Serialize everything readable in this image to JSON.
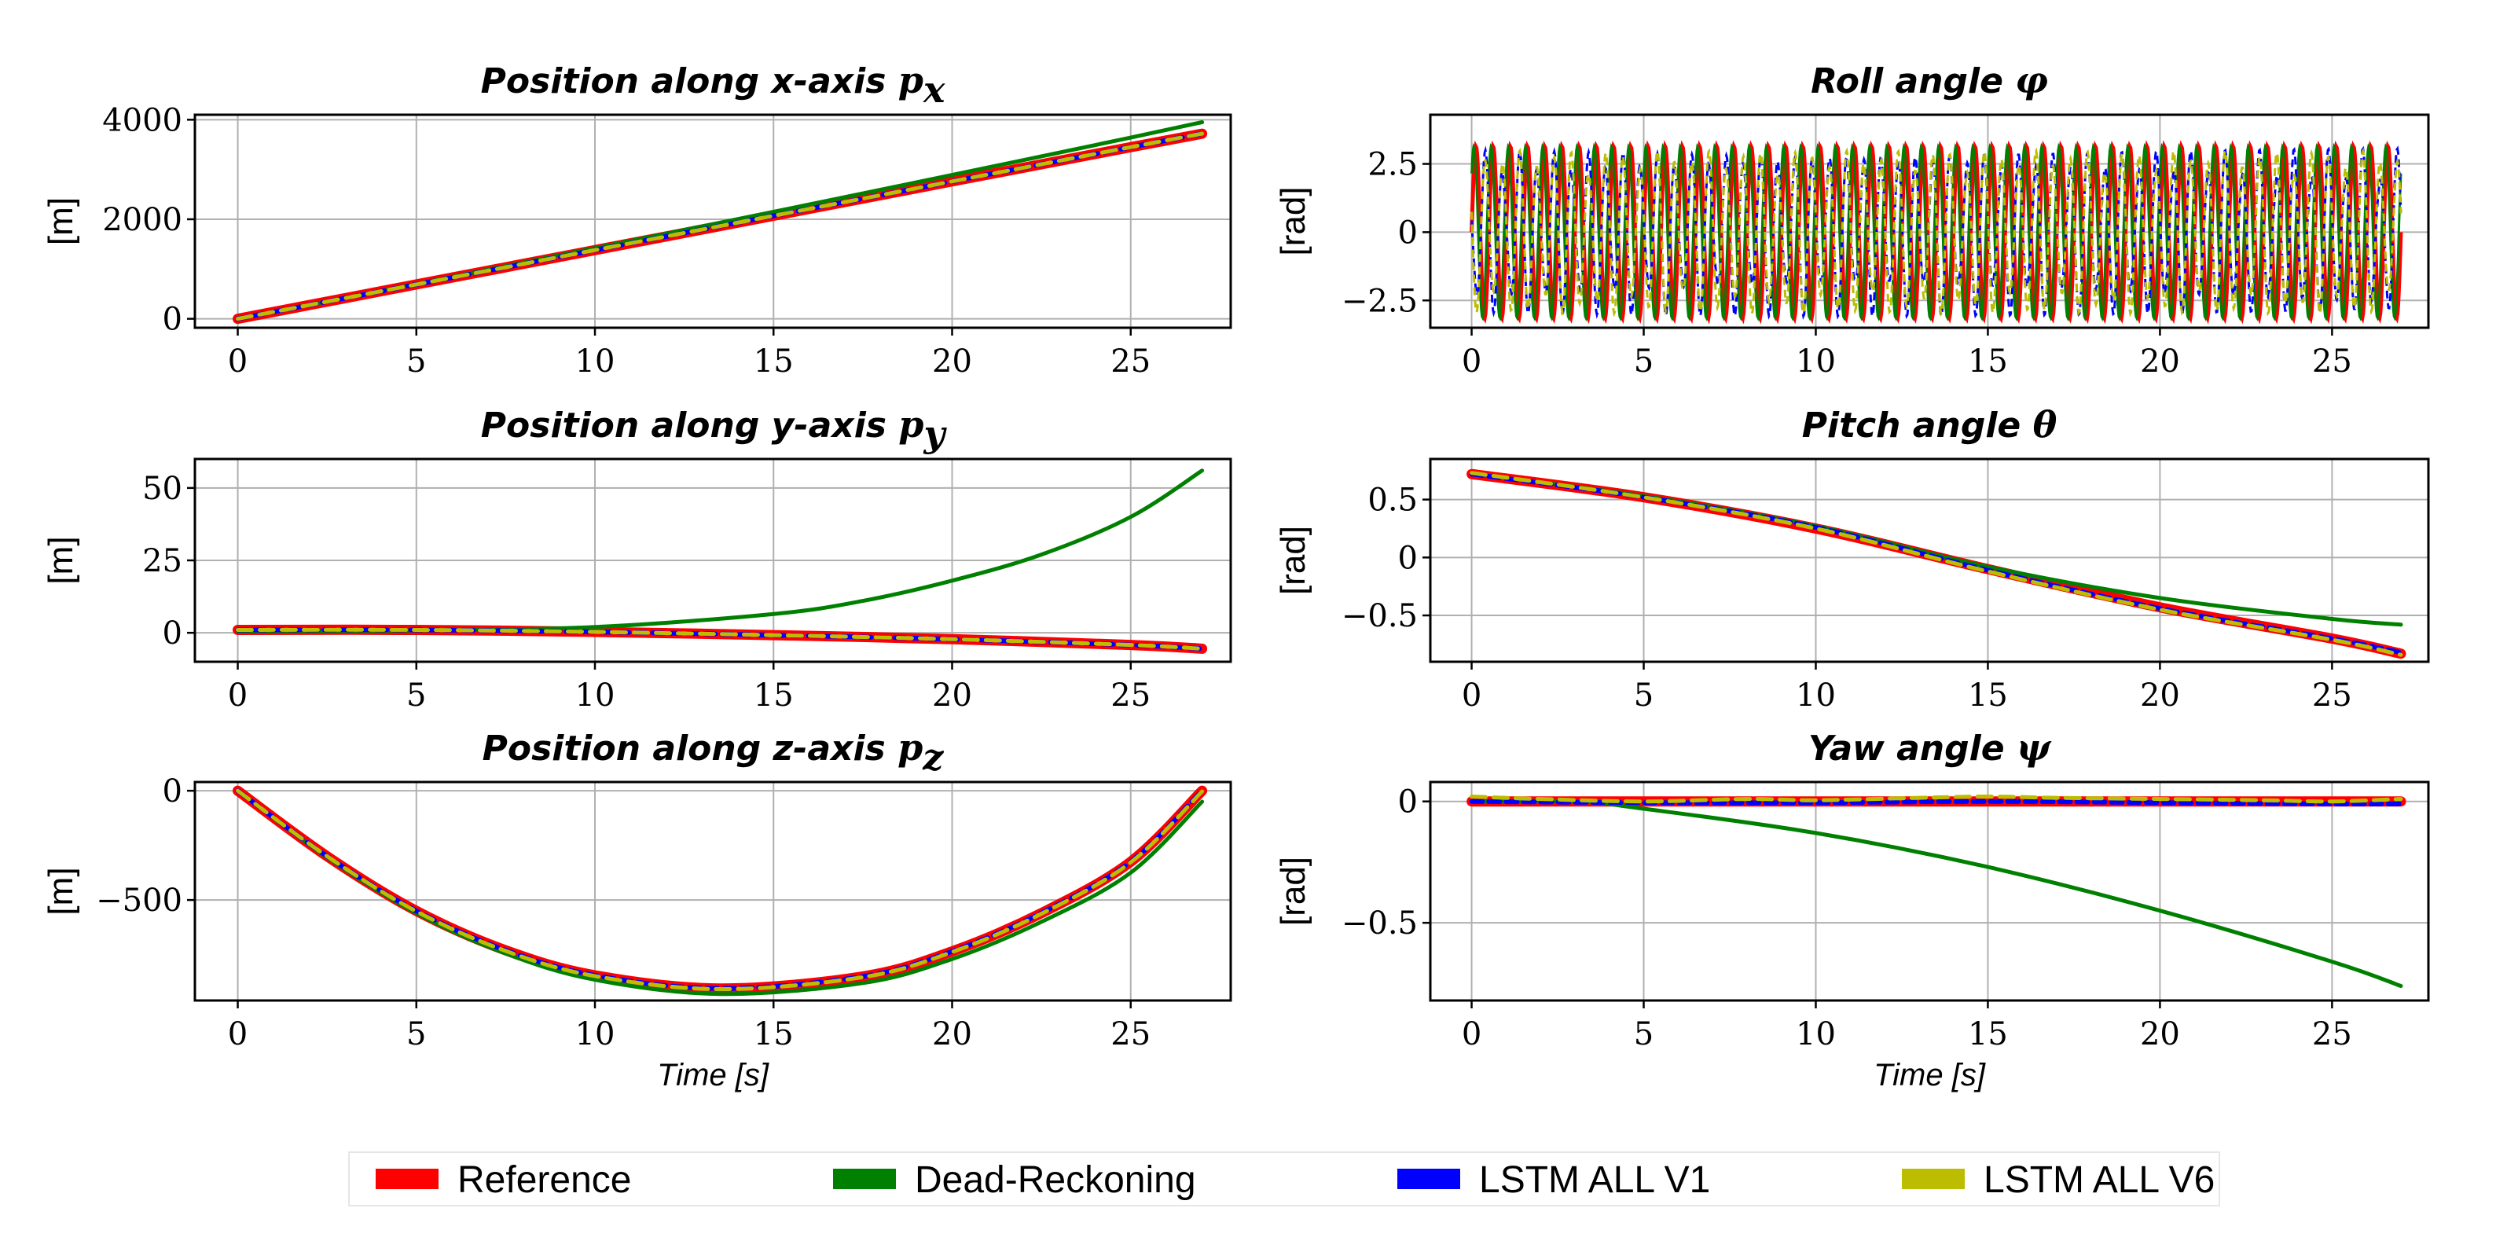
{
  "legend": [
    {
      "label": "Reference",
      "color": "#ff0000"
    },
    {
      "label": "Dead-Reckoning",
      "color": "#008000"
    },
    {
      "label": "LSTM ALL V1",
      "color": "#0000ff"
    },
    {
      "label": "LSTM ALL V6",
      "color": "#bcbd00"
    }
  ],
  "chart_data": [
    {
      "id": "px",
      "type": "line",
      "title": "Position along x-axis ",
      "title_symbol": "p",
      "title_subscript": "x",
      "ylabel": "[m]",
      "xlabel": "",
      "xlim": [
        -1.2,
        27.8
      ],
      "ylim": [
        -180,
        4100
      ],
      "xticks": [
        0,
        5,
        10,
        15,
        20,
        25
      ],
      "xtick_labels": [
        "0",
        "5",
        "10",
        "15",
        "20",
        "25"
      ],
      "yticks": [
        0,
        2000,
        4000
      ],
      "ytick_labels": [
        "0",
        "2000",
        "4000"
      ],
      "series": [
        {
          "name": "Reference",
          "x": [
            0,
            5,
            10,
            15,
            20,
            25,
            27
          ],
          "y": [
            0,
            690,
            1380,
            2070,
            2760,
            3450,
            3720
          ]
        },
        {
          "name": "Dead-Reckoning",
          "x": [
            0,
            5,
            10,
            15,
            20,
            25,
            27
          ],
          "y": [
            0,
            700,
            1420,
            2150,
            2890,
            3640,
            3950
          ]
        },
        {
          "name": "LSTM ALL V1",
          "x": [
            0,
            5,
            10,
            15,
            20,
            25,
            27
          ],
          "y": [
            0,
            690,
            1380,
            2070,
            2760,
            3450,
            3720
          ]
        },
        {
          "name": "LSTM ALL V6",
          "x": [
            0,
            5,
            10,
            15,
            20,
            25,
            27
          ],
          "y": [
            0,
            690,
            1380,
            2070,
            2760,
            3450,
            3720
          ]
        }
      ]
    },
    {
      "id": "roll",
      "type": "line",
      "title": "Roll angle ",
      "title_symbol": "φ",
      "title_subscript": "",
      "ylabel": "[rad]",
      "xlabel": "",
      "xlim": [
        -1.2,
        27.8
      ],
      "ylim": [
        -3.5,
        4.3
      ],
      "xticks": [
        0,
        5,
        10,
        15,
        20,
        25
      ],
      "xtick_labels": [
        "0",
        "5",
        "10",
        "15",
        "20",
        "25"
      ],
      "yticks": [
        -2.5,
        0,
        2.5
      ],
      "ytick_labels": [
        "−2.5",
        "0",
        "2.5"
      ],
      "oscillating": true,
      "oscillation_period_s": 0.5,
      "oscillation_amplitude": 3.14,
      "series": [
        {
          "name": "Reference",
          "note": "rapid wrap-around between -3.14 and 3.14"
        },
        {
          "name": "Dead-Reckoning",
          "note": "rapid wrap-around between -3.14 and 3.14"
        },
        {
          "name": "LSTM ALL V1",
          "note": "noisy oscillation between -3.14 and 3.14"
        },
        {
          "name": "LSTM ALL V6",
          "note": "noisy oscillation between -3.14 and 3.14"
        }
      ]
    },
    {
      "id": "py",
      "type": "line",
      "title": "Position along y-axis ",
      "title_symbol": "p",
      "title_subscript": "y",
      "ylabel": "[m]",
      "xlabel": "",
      "xlim": [
        -1.2,
        27.8
      ],
      "ylim": [
        -10,
        60
      ],
      "xticks": [
        0,
        5,
        10,
        15,
        20,
        25
      ],
      "xtick_labels": [
        "0",
        "5",
        "10",
        "15",
        "20",
        "25"
      ],
      "yticks": [
        0,
        25,
        50
      ],
      "ytick_labels": [
        "0",
        "25",
        "50"
      ],
      "series": [
        {
          "name": "Reference",
          "x": [
            0,
            5,
            10,
            15,
            20,
            25,
            27
          ],
          "y": [
            1,
            1,
            0.3,
            -0.8,
            -2.2,
            -4.2,
            -5.5
          ]
        },
        {
          "name": "Dead-Reckoning",
          "x": [
            0,
            5,
            10,
            15,
            17.5,
            20,
            22.5,
            25,
            27
          ],
          "y": [
            0.5,
            0.8,
            2,
            6.5,
            11,
            18,
            27,
            40,
            56
          ]
        },
        {
          "name": "LSTM ALL V1",
          "x": [
            0,
            5,
            10,
            15,
            20,
            25,
            27
          ],
          "y": [
            1,
            1,
            0.3,
            -0.8,
            -2.2,
            -4.2,
            -5.5
          ]
        },
        {
          "name": "LSTM ALL V6",
          "x": [
            0,
            5,
            10,
            15,
            20,
            25,
            27
          ],
          "y": [
            1,
            1,
            0.3,
            -0.8,
            -2.2,
            -4.2,
            -5.5
          ]
        }
      ]
    },
    {
      "id": "pitch",
      "type": "line",
      "title": "Pitch angle ",
      "title_symbol": "θ",
      "title_subscript": "",
      "ylabel": "[rad]",
      "xlabel": "",
      "xlim": [
        -1.2,
        27.8
      ],
      "ylim": [
        -0.9,
        0.85
      ],
      "xticks": [
        0,
        5,
        10,
        15,
        20,
        25
      ],
      "xtick_labels": [
        "0",
        "5",
        "10",
        "15",
        "20",
        "25"
      ],
      "yticks": [
        -0.5,
        0,
        0.5
      ],
      "ytick_labels": [
        "−0.5",
        "0",
        "0.5"
      ],
      "series": [
        {
          "name": "Reference",
          "x": [
            0,
            5,
            10,
            15,
            20,
            25,
            27
          ],
          "y": [
            0.72,
            0.52,
            0.25,
            -0.1,
            -0.43,
            -0.7,
            -0.83
          ]
        },
        {
          "name": "Dead-Reckoning",
          "x": [
            0,
            5,
            10,
            15,
            20,
            25,
            27
          ],
          "y": [
            0.72,
            0.53,
            0.27,
            -0.08,
            -0.35,
            -0.53,
            -0.58
          ]
        },
        {
          "name": "LSTM ALL V1",
          "x": [
            0,
            5,
            10,
            15,
            20,
            25,
            27
          ],
          "y": [
            0.72,
            0.52,
            0.26,
            -0.11,
            -0.44,
            -0.7,
            -0.82
          ]
        },
        {
          "name": "LSTM ALL V6",
          "x": [
            0,
            5,
            10,
            15,
            20,
            25,
            27
          ],
          "y": [
            0.73,
            0.52,
            0.25,
            -0.12,
            -0.45,
            -0.71,
            -0.84
          ]
        }
      ]
    },
    {
      "id": "pz",
      "type": "line",
      "title": "Position along z-axis ",
      "title_symbol": "p",
      "title_subscript": "z",
      "ylabel": "[m]",
      "xlabel": "Time [s]",
      "xlim": [
        -1.2,
        27.8
      ],
      "ylim": [
        -960,
        40
      ],
      "xticks": [
        0,
        5,
        10,
        15,
        20,
        25
      ],
      "xtick_labels": [
        "0",
        "5",
        "10",
        "15",
        "20",
        "25"
      ],
      "yticks": [
        -500,
        0
      ],
      "ytick_labels": [
        "−500",
        "0"
      ],
      "series": [
        {
          "name": "Reference",
          "x": [
            0,
            2.5,
            5,
            7.5,
            10,
            13.5,
            17.5,
            20,
            22.5,
            25,
            27
          ],
          "y": [
            0,
            -300,
            -550,
            -730,
            -845,
            -905,
            -850,
            -735,
            -560,
            -325,
            0
          ]
        },
        {
          "name": "Dead-Reckoning",
          "x": [
            0,
            2.5,
            5,
            7.5,
            10,
            13.5,
            17.5,
            20,
            22.5,
            25,
            27
          ],
          "y": [
            0,
            -305,
            -560,
            -745,
            -865,
            -930,
            -880,
            -770,
            -600,
            -375,
            -50
          ]
        },
        {
          "name": "LSTM ALL V1",
          "x": [
            0,
            2.5,
            5,
            7.5,
            10,
            13.5,
            17.5,
            20,
            22.5,
            25,
            27
          ],
          "y": [
            0,
            -300,
            -550,
            -730,
            -845,
            -905,
            -850,
            -735,
            -560,
            -325,
            0
          ]
        },
        {
          "name": "LSTM ALL V6",
          "x": [
            0,
            2.5,
            5,
            7.5,
            10,
            13.5,
            17.5,
            20,
            22.5,
            25,
            27
          ],
          "y": [
            0,
            -300,
            -552,
            -733,
            -848,
            -908,
            -853,
            -738,
            -563,
            -328,
            -3
          ]
        }
      ]
    },
    {
      "id": "yaw",
      "type": "line",
      "title": "Yaw angle ",
      "title_symbol": "ψ",
      "title_subscript": "",
      "ylabel": "[rad]",
      "xlabel": "Time [s]",
      "xlim": [
        -1.2,
        27.8
      ],
      "ylim": [
        -0.82,
        0.08
      ],
      "xticks": [
        0,
        5,
        10,
        15,
        20,
        25
      ],
      "xtick_labels": [
        "0",
        "5",
        "10",
        "15",
        "20",
        "25"
      ],
      "yticks": [
        -0.5,
        0
      ],
      "ytick_labels": [
        "−0.5",
        "0"
      ],
      "series": [
        {
          "name": "Reference",
          "x": [
            0,
            27
          ],
          "y": [
            0,
            0
          ]
        },
        {
          "name": "Dead-Reckoning",
          "x": [
            0,
            3,
            5,
            10,
            15,
            20,
            25,
            27
          ],
          "y": [
            0,
            0,
            -0.03,
            -0.13,
            -0.27,
            -0.45,
            -0.66,
            -0.76
          ]
        },
        {
          "name": "LSTM ALL V1",
          "x": [
            0,
            5,
            10,
            15,
            20,
            25,
            27
          ],
          "y": [
            0,
            -0.005,
            -0.005,
            0,
            -0.005,
            -0.01,
            -0.01
          ]
        },
        {
          "name": "LSTM ALL V6",
          "x": [
            0,
            2,
            5,
            8,
            10,
            13,
            15,
            17,
            20,
            23,
            25,
            27
          ],
          "y": [
            0.02,
            0.01,
            0.0,
            0.01,
            0.005,
            0.015,
            0.02,
            0.015,
            0.01,
            0.005,
            0.0,
            0.01
          ]
        }
      ]
    }
  ]
}
